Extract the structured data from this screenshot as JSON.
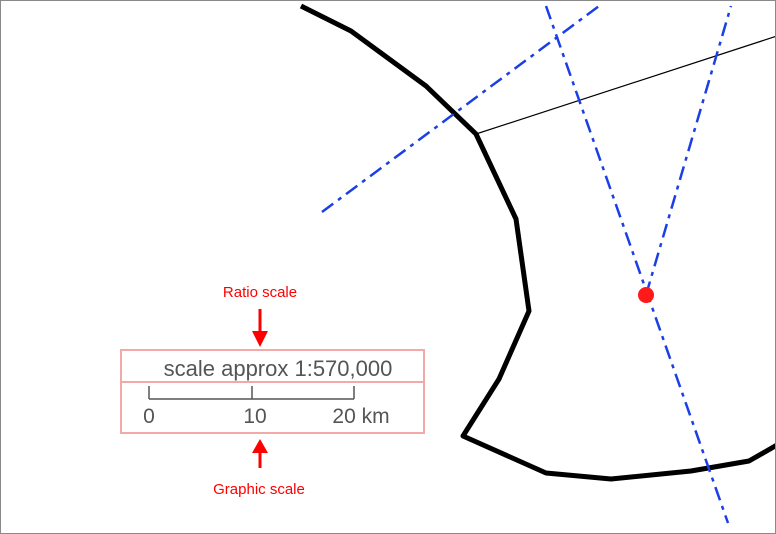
{
  "annotations": {
    "ratio_label": "Ratio scale",
    "graphic_label": "Graphic scale"
  },
  "scale": {
    "ratio_text": "scale approx 1:570,000",
    "ticks": [
      "0",
      "10",
      "20 km"
    ]
  },
  "colors": {
    "annotation": "#ff0000",
    "bearing_line": "#1a3fe6",
    "point": "#ff1a1a",
    "boundary": "#000000",
    "scale_box": "#f4a9a9",
    "scale_text": "#555555"
  }
}
